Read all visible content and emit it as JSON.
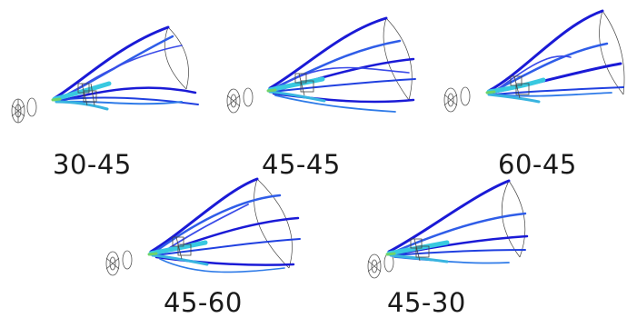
{
  "panels": [
    {
      "label": "30-45"
    },
    {
      "label": "45-45"
    },
    {
      "label": "60-45"
    },
    {
      "label": "45-60"
    },
    {
      "label": "45-30"
    }
  ],
  "colors": {
    "streamline_dark": "#1a1ad6",
    "streamline_mid": "#2f7be8",
    "streamline_light": "#38c9e0",
    "inlet_green": "#6fd36a",
    "wire_outline": "#555555",
    "caption_text": "#1a1a1a"
  }
}
